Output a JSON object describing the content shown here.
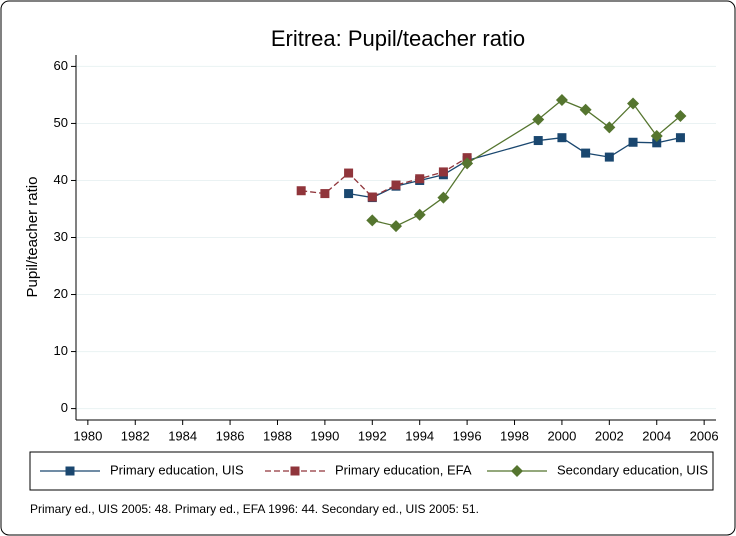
{
  "chart_data": {
    "type": "line",
    "title": "Eritrea: Pupil/teacher ratio",
    "y_label": "Pupil/teacher ratio",
    "note": "Primary ed., UIS 2005: 48. Primary ed., EFA 1996: 44. Secondary ed., UIS 2005: 51.",
    "xlim": [
      1979.5,
      2006.5
    ],
    "xticks": [
      1980,
      1982,
      1984,
      1986,
      1988,
      1990,
      1992,
      1994,
      1996,
      1998,
      2000,
      2002,
      2004,
      2006
    ],
    "ylim": [
      -2,
      62
    ],
    "yticks": [
      0,
      10,
      20,
      30,
      40,
      50,
      60
    ],
    "grid": true,
    "legend": "bottom",
    "series": [
      {
        "name": "Primary education, UIS",
        "color": "#1a476f",
        "marker": "square",
        "line_style": "solid",
        "x": [
          1991,
          1992,
          1993,
          1994,
          1995,
          1996,
          1999,
          2000,
          2001,
          2002,
          2003,
          2004,
          2005
        ],
        "values": [
          37.7,
          37.0,
          39.0,
          40.0,
          41.0,
          43.5,
          47.0,
          47.5,
          44.8,
          44.1,
          46.7,
          46.6,
          47.5
        ]
      },
      {
        "name": "Primary education, EFA",
        "color": "#90353b",
        "marker": "square",
        "line_style": "dashed",
        "x": [
          1989,
          1990,
          1991,
          1992,
          1993,
          1994,
          1995,
          1996
        ],
        "values": [
          38.2,
          37.7,
          41.3,
          37.1,
          39.2,
          40.3,
          41.5,
          44.0
        ]
      },
      {
        "name": "Secondary education, UIS",
        "color": "#55752f",
        "marker": "diamond",
        "line_style": "solid",
        "x": [
          1992,
          1993,
          1994,
          1995,
          1996,
          1999,
          2000,
          2001,
          2002,
          2003,
          2004,
          2005
        ],
        "values": [
          33.0,
          32.0,
          34.0,
          37.0,
          43.0,
          50.7,
          54.1,
          52.4,
          49.3,
          53.5,
          47.8,
          51.3
        ]
      }
    ]
  }
}
